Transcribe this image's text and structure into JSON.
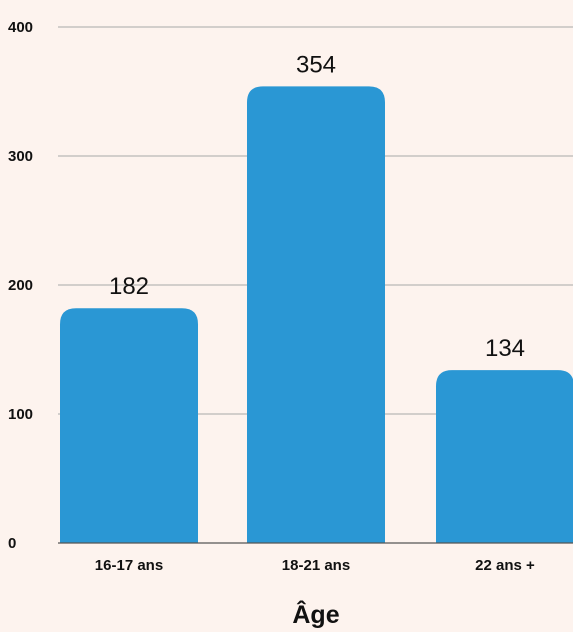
{
  "chart_data": {
    "type": "bar",
    "categories": [
      "16-17 ans",
      "18-21 ans",
      "22 ans +"
    ],
    "values": [
      182,
      354,
      134
    ],
    "data_labels": [
      "182",
      "354",
      "134"
    ],
    "yticks": [
      0,
      100,
      200,
      300,
      400
    ],
    "ytick_labels": [
      "0",
      "100",
      "200",
      "300",
      "400"
    ],
    "ylim": [
      0,
      400
    ],
    "xlabel": "Âge",
    "ylabel": "",
    "title": "",
    "grid": true,
    "bar_color": "#2a97d4"
  }
}
